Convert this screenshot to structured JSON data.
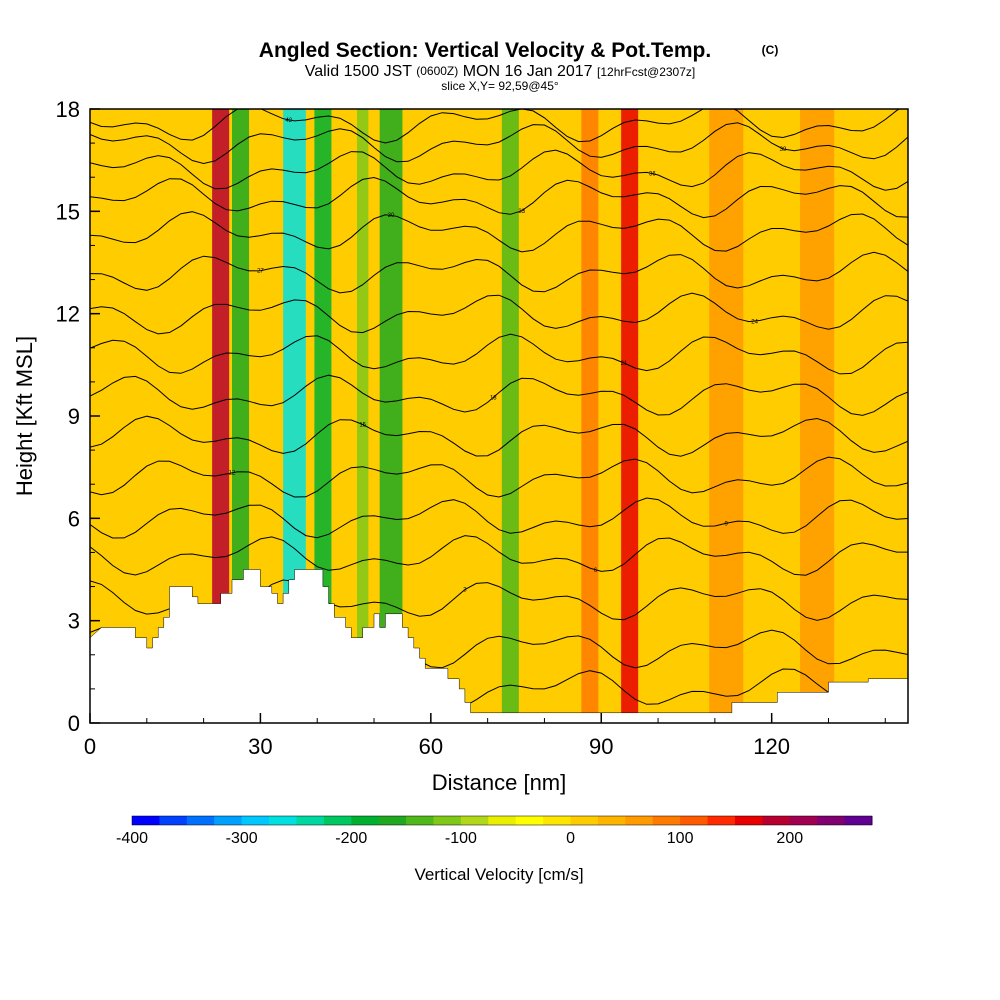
{
  "title": {
    "main": "Angled Section: Vertical Velocity & Pot.Temp.",
    "copyright": "(C)",
    "valid_prefix": "Valid 1500 JST",
    "valid_utc": "(0600Z)",
    "valid_date": "MON 16 Jan 2017",
    "forecast": "[12hrFcst@2307z]",
    "slice": "slice X,Y= 92,59@45°"
  },
  "chart_data": {
    "type": "heatmap",
    "xlabel": "Distance [nm]",
    "ylabel": "Height [Kft MSL]",
    "xlim": [
      0,
      144
    ],
    "ylim": [
      0,
      18
    ],
    "x_ticks": [
      0,
      30,
      60,
      90,
      120
    ],
    "y_ticks": [
      0,
      3,
      6,
      9,
      12,
      15,
      18
    ],
    "x_minor_step": 10,
    "y_minor_step": 1,
    "colorbar": {
      "title": "Vertical Velocity [cm/s]",
      "range": [
        -400,
        275
      ],
      "step": 25,
      "tick_values": [
        -400,
        -300,
        -200,
        -100,
        0,
        100,
        200
      ],
      "tick_labels": [
        "-400",
        "-300",
        "-200",
        "-100",
        "0",
        "100",
        "200"
      ],
      "colors": [
        "#0000ff",
        "#0040ff",
        "#0070ff",
        "#00a0ff",
        "#00c8ff",
        "#00e0e0",
        "#00d8a0",
        "#00c860",
        "#00b030",
        "#20a820",
        "#50b818",
        "#80c818",
        "#b0d818",
        "#e8f000",
        "#ffff00",
        "#ffe600",
        "#ffcc00",
        "#ffb400",
        "#ff9a00",
        "#ff7a00",
        "#ff5a00",
        "#ff2a00",
        "#e80000",
        "#b80030",
        "#a00050",
        "#800070",
        "#600090"
      ]
    },
    "terrain_kft": [
      [
        0,
        2.5
      ],
      [
        2,
        2.8
      ],
      [
        8,
        2.8
      ],
      [
        8,
        2.5
      ],
      [
        10,
        2.5
      ],
      [
        10,
        2.2
      ],
      [
        11,
        2.2
      ],
      [
        11,
        2.5
      ],
      [
        12,
        2.5
      ],
      [
        12,
        2.8
      ],
      [
        13,
        2.8
      ],
      [
        13,
        3.1
      ],
      [
        14,
        3.1
      ],
      [
        14,
        4.0
      ],
      [
        18,
        4.0
      ],
      [
        18,
        3.7
      ],
      [
        19,
        3.7
      ],
      [
        19,
        3.5
      ],
      [
        23,
        3.5
      ],
      [
        23,
        3.8
      ],
      [
        25,
        3.8
      ],
      [
        25,
        4.2
      ],
      [
        27,
        4.2
      ],
      [
        27,
        4.5
      ],
      [
        30,
        4.5
      ],
      [
        30,
        4.0
      ],
      [
        32,
        4.0
      ],
      [
        32,
        3.8
      ],
      [
        33,
        3.8
      ],
      [
        33,
        3.5
      ],
      [
        34,
        3.5
      ],
      [
        34,
        3.8
      ],
      [
        35,
        3.8
      ],
      [
        35,
        4.2
      ],
      [
        36,
        4.2
      ],
      [
        36,
        4.5
      ],
      [
        41,
        4.5
      ],
      [
        41,
        4.0
      ],
      [
        42,
        4.0
      ],
      [
        42,
        3.5
      ],
      [
        43,
        3.5
      ],
      [
        43,
        3.1
      ],
      [
        45,
        3.1
      ],
      [
        45,
        2.8
      ],
      [
        46,
        2.8
      ],
      [
        46,
        2.5
      ],
      [
        48,
        2.5
      ],
      [
        48,
        2.8
      ],
      [
        50,
        2.8
      ],
      [
        50,
        3.2
      ],
      [
        51,
        3.2
      ],
      [
        51,
        2.8
      ],
      [
        52,
        2.8
      ],
      [
        52,
        3.2
      ],
      [
        55,
        3.2
      ],
      [
        55,
        2.8
      ],
      [
        56,
        2.8
      ],
      [
        56,
        2.5
      ],
      [
        57,
        2.5
      ],
      [
        57,
        2.2
      ],
      [
        58,
        2.2
      ],
      [
        58,
        1.9
      ],
      [
        59,
        1.9
      ],
      [
        59,
        1.6
      ],
      [
        63,
        1.6
      ],
      [
        63,
        1.3
      ],
      [
        65,
        1.3
      ],
      [
        65,
        1.0
      ],
      [
        66,
        1.0
      ],
      [
        66,
        0.6
      ],
      [
        67,
        0.6
      ],
      [
        67,
        0.3
      ],
      [
        68,
        0.3
      ],
      [
        113,
        0.3
      ],
      [
        113,
        0.6
      ],
      [
        121,
        0.6
      ],
      [
        121,
        0.9
      ],
      [
        130,
        0.9
      ],
      [
        130,
        1.2
      ],
      [
        137,
        1.2
      ],
      [
        137,
        1.3
      ],
      [
        144,
        1.3
      ]
    ],
    "isentropes": {
      "baseline_kft": [
        1.0,
        2.2,
        3.6,
        4.9,
        6.0,
        7.2,
        8.4,
        9.6,
        10.8,
        12.0,
        13.2,
        14.4,
        15.4,
        16.2,
        17.0,
        17.6
      ],
      "line_labels": [
        "-3",
        "0",
        "3",
        "6",
        "9",
        "12",
        "15",
        "18",
        "21",
        "24",
        "27",
        "30",
        "33",
        "36",
        "39",
        "42"
      ]
    },
    "velocity_bands": [
      {
        "x": 23,
        "width": 3,
        "value": 180
      },
      {
        "x": 26.5,
        "width": 3,
        "value": -160
      },
      {
        "x": 36,
        "width": 4,
        "value": -270
      },
      {
        "x": 41,
        "width": 3,
        "value": -200
      },
      {
        "x": 48,
        "width": 2,
        "value": -120
      },
      {
        "x": 53,
        "width": 4,
        "value": -170
      },
      {
        "x": 74,
        "width": 3,
        "value": -130
      },
      {
        "x": 88,
        "width": 3,
        "value": 90
      },
      {
        "x": 95,
        "width": 3,
        "value": 150
      },
      {
        "x": 112,
        "width": 6,
        "value": 60
      },
      {
        "x": 128,
        "width": 6,
        "value": 60
      }
    ]
  }
}
